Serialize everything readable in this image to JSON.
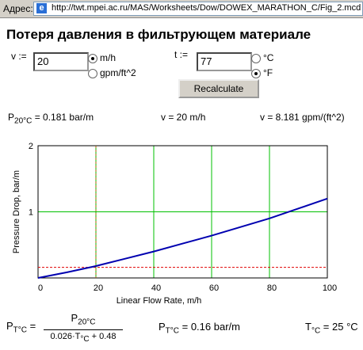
{
  "address_bar": {
    "label": "Адрес:",
    "url": "http://twt.mpei.ac.ru/MAS/Worksheets/Dow/DOWEX_MARATHON_C/Fig_2.mcd"
  },
  "title": "Потеря давления в фильтрующем материале",
  "form": {
    "v_label": "v :=",
    "v_value": "20",
    "v_units": [
      "m/h",
      "gpm/ft^2"
    ],
    "v_units_checked": 0,
    "t_label": "t :=",
    "t_value": "77",
    "t_units": [
      "°C",
      "°F"
    ],
    "t_units_checked": 1,
    "button": "Recalculate"
  },
  "results": [
    {
      "main": "P",
      "sub": "20°C",
      "rest": " = 0.181 bar/m"
    },
    {
      "main": "v = 20 m/h"
    },
    {
      "main": "v = 8.181 gpm/(ft^2)"
    }
  ],
  "chart_data": {
    "type": "line",
    "x_label": "Linear Flow Rate, m/h",
    "y_label": "Pressure Drop, bar/m",
    "x": [
      0,
      10,
      20,
      30,
      40,
      50,
      60,
      70,
      80,
      90,
      100
    ],
    "series": [
      {
        "color": "#0000b0",
        "values": [
          0,
          0.085,
          0.18,
          0.29,
          0.4,
          0.52,
          0.64,
          0.77,
          0.9,
          1.05,
          1.2
        ]
      }
    ],
    "reference_lines": [
      {
        "axis": "y",
        "value": 0.16,
        "color": "#e00000"
      },
      {
        "axis": "x",
        "value": 20,
        "color": "#a06000"
      }
    ],
    "xlim": [
      0,
      100
    ],
    "ylim": [
      0,
      2
    ],
    "xticks": [
      0,
      20,
      40,
      60,
      80,
      100
    ],
    "yticks": [
      1,
      2
    ],
    "grid": true,
    "grid_color": "#00c000"
  },
  "formula": {
    "lhs": {
      "main": "P",
      "sub": "T°C",
      "rest": " ="
    },
    "numerator": {
      "main": "P",
      "sub": "20°C"
    },
    "denominator": {
      "main": "0.026·T",
      "sub": "°C",
      "rest": " + 0.48"
    },
    "result": {
      "main": "P",
      "sub": "T°C",
      "rest": " = 0.16 bar/m"
    },
    "temperature": {
      "main": "T",
      "sub": "°C",
      "rest": " = 25 °C"
    }
  }
}
